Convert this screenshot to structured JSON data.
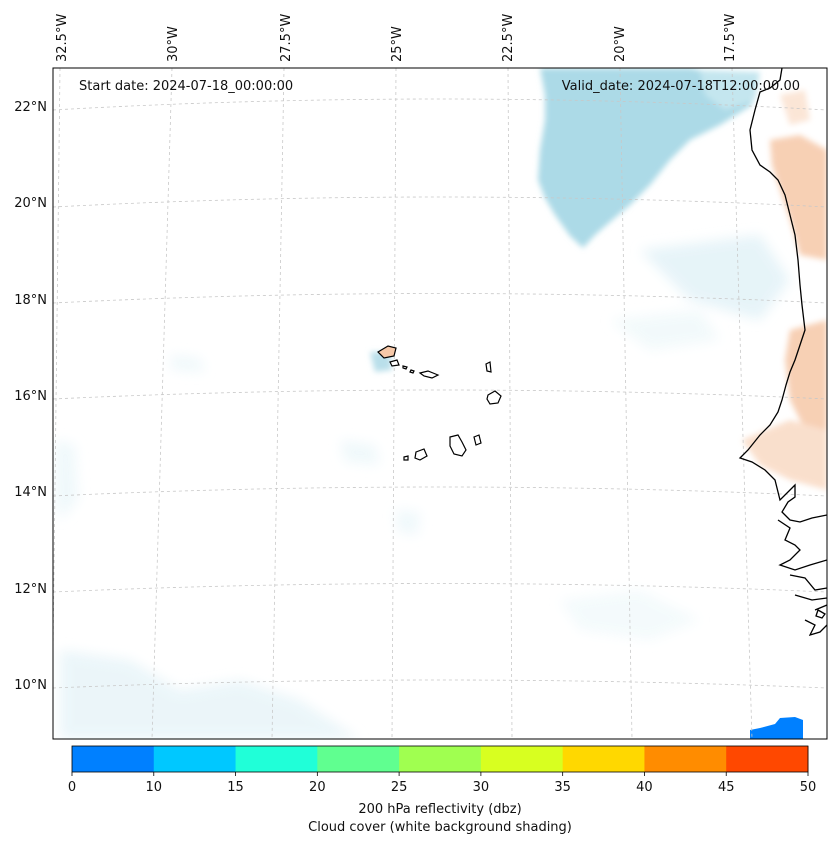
{
  "map": {
    "start_date": "Start date: 2024-07-18_00:00:00",
    "valid_date": "Valid_date: 2024-07-18T12:00:00.00",
    "longitude_labels": [
      "32.5°W",
      "30°W",
      "27.5°W",
      "25°W",
      "22.5°W",
      "20°W",
      "17.5°W"
    ],
    "latitude_labels": [
      "22°N",
      "20°N",
      "18°N",
      "16°N",
      "14°N",
      "12°N",
      "10°N"
    ],
    "colors": {
      "cloud": "#a8d8e6",
      "cloud_light": "#e4f3f8",
      "warm": "#f6c8a8",
      "coast": "#000000",
      "gridline": "#c8c8c8"
    }
  },
  "colorbar": {
    "ticks": [
      "0",
      "10",
      "15",
      "20",
      "25",
      "30",
      "35",
      "40",
      "45",
      "50"
    ],
    "colors": [
      "#0080ff",
      "#00c8ff",
      "#20ffd8",
      "#60ff90",
      "#a0ff50",
      "#d8ff20",
      "#ffd800",
      "#ff8c00",
      "#ff4800"
    ],
    "label_line1": "200 hPa reflectivity (dbz)",
    "label_line2": "Cloud cover (white background shading)"
  }
}
